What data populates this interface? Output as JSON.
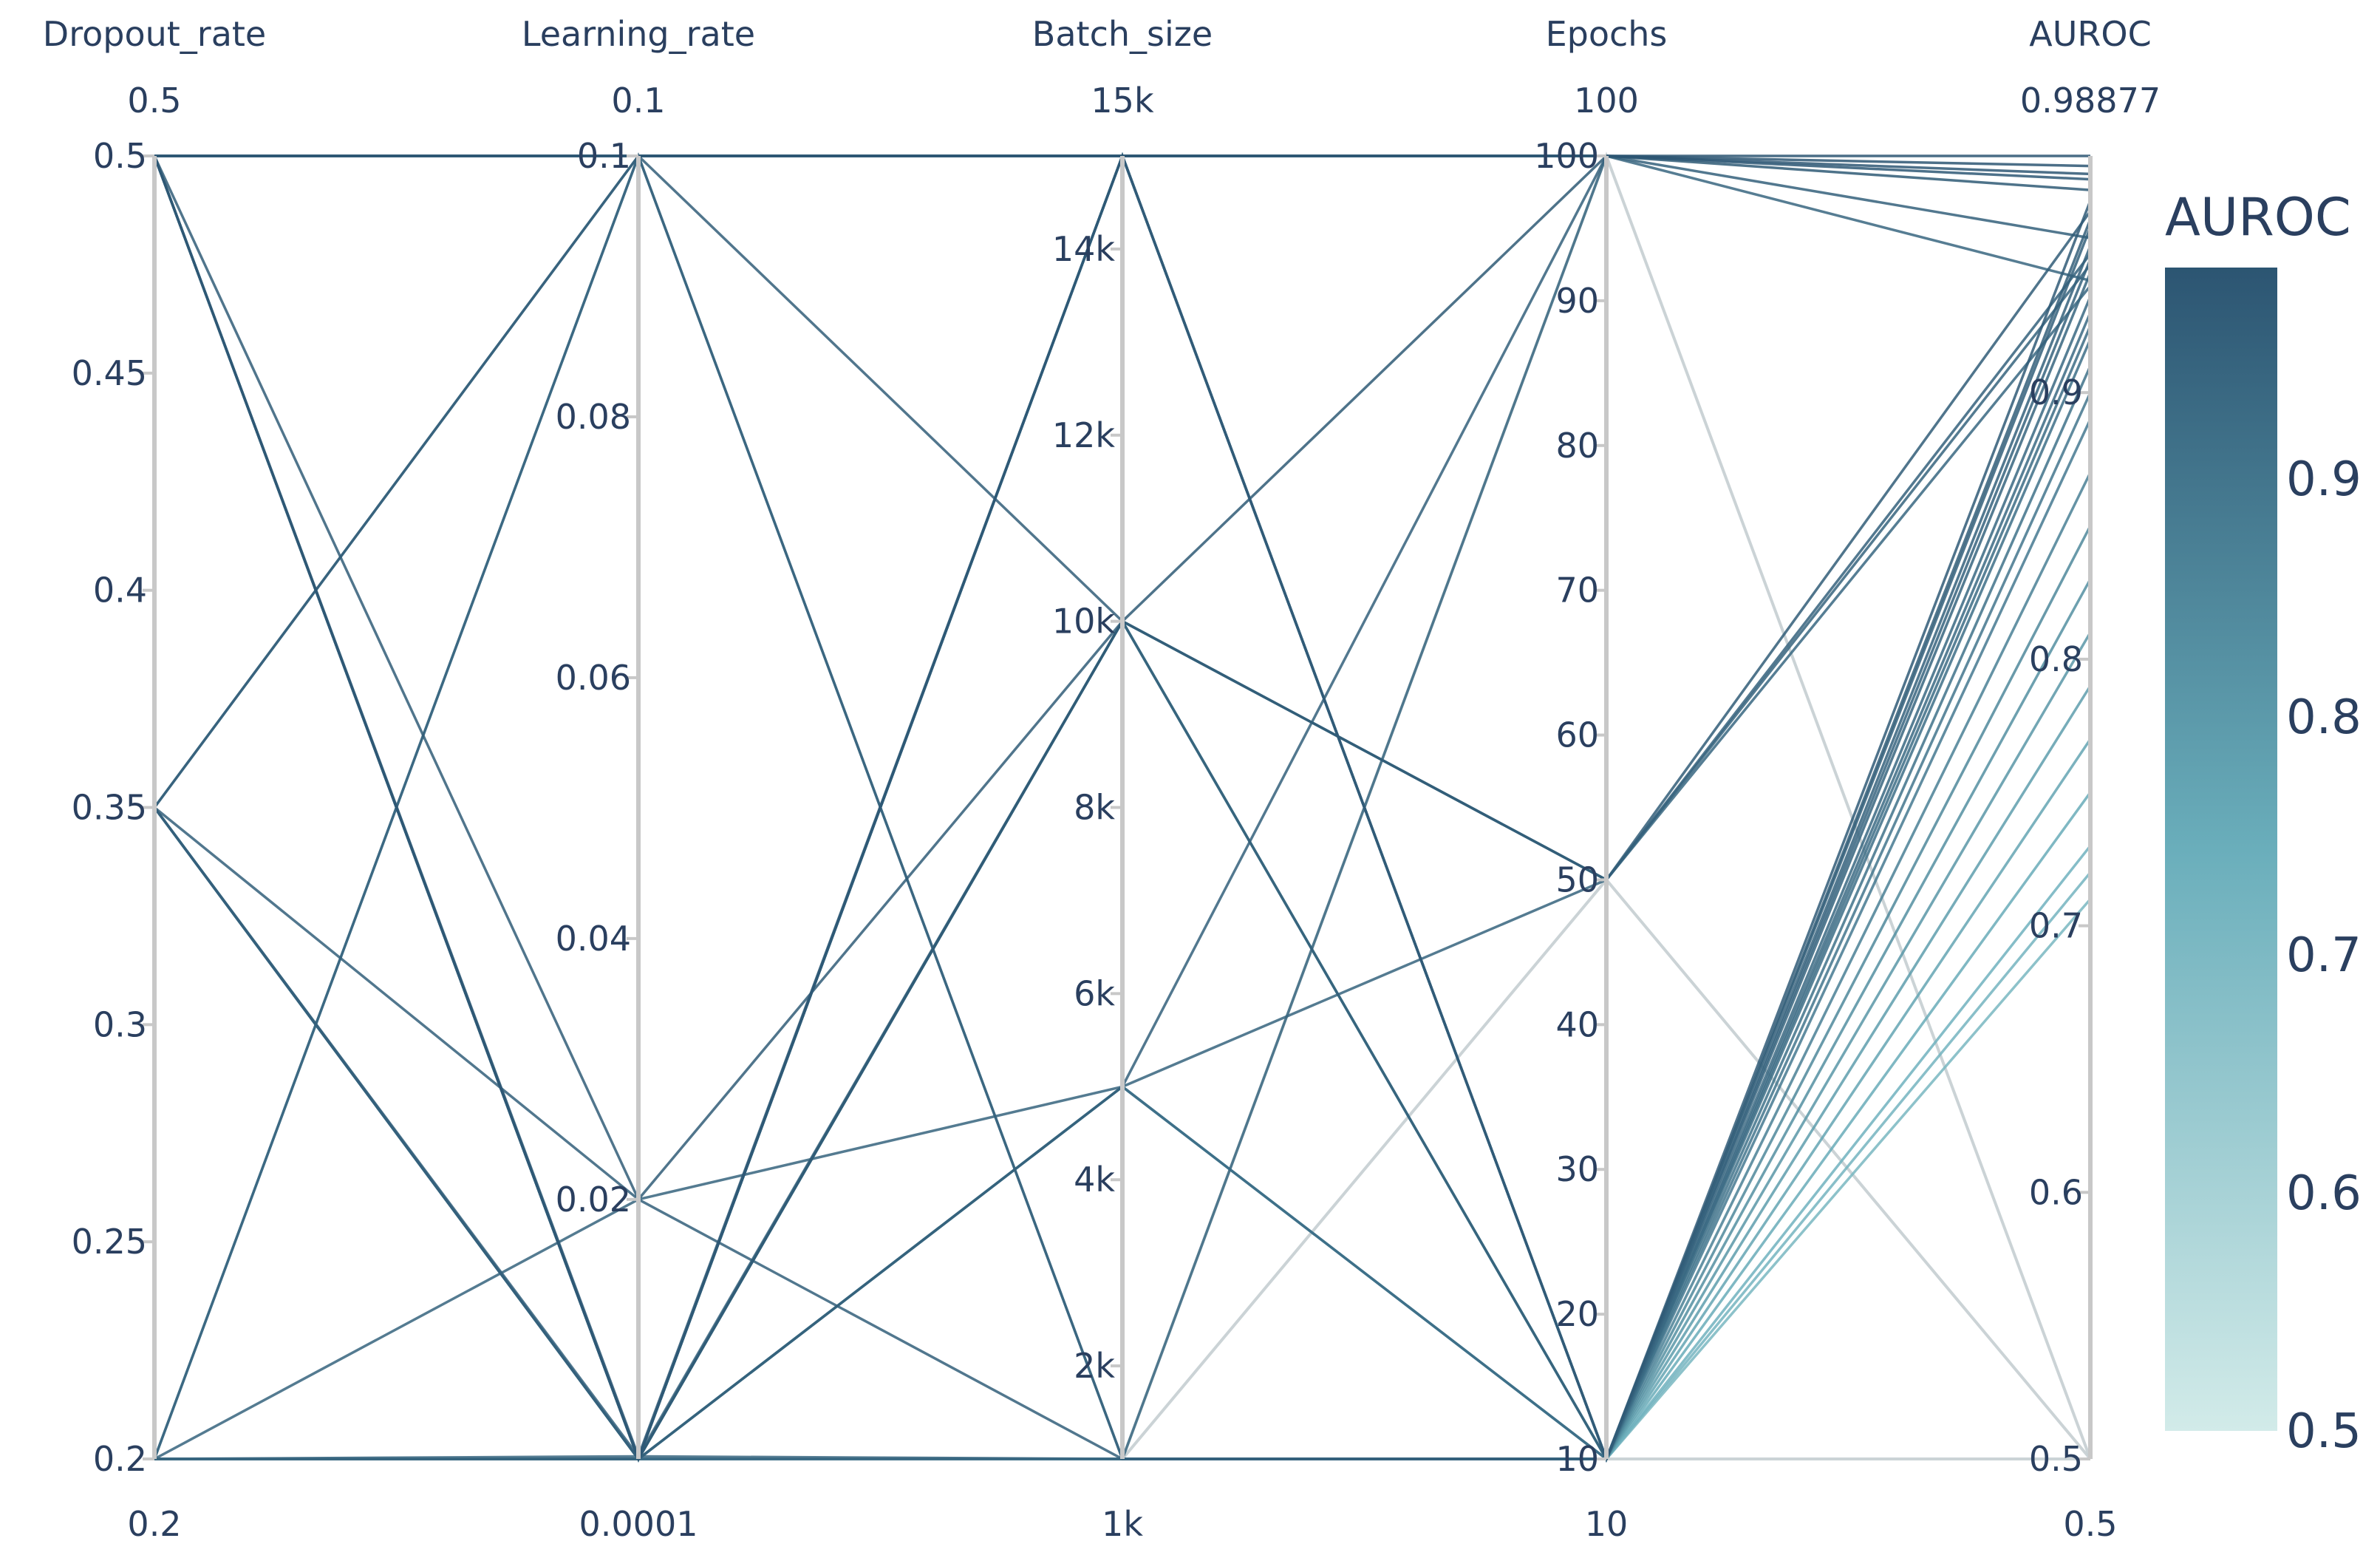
{
  "chart_data": {
    "type": "parallel-coordinates",
    "colorscale_title": "AUROC",
    "colorscale": {
      "low": "#d2ebe9",
      "mid": "#6aaebb",
      "high": "#2c5572"
    },
    "colorbar_range": [
      0.5,
      0.98877
    ],
    "colorbar_ticks": [
      "0.5",
      "0.6",
      "0.7",
      "0.8",
      "0.9"
    ],
    "axes": [
      {
        "name": "Dropout_rate",
        "min": 0.2,
        "max": 0.5,
        "min_label": "0.2",
        "max_label": "0.5",
        "ticks": [
          {
            "v": 0.2,
            "t": "0.2"
          },
          {
            "v": 0.25,
            "t": "0.25"
          },
          {
            "v": 0.3,
            "t": "0.3"
          },
          {
            "v": 0.35,
            "t": "0.35"
          },
          {
            "v": 0.4,
            "t": "0.4"
          },
          {
            "v": 0.45,
            "t": "0.45"
          },
          {
            "v": 0.5,
            "t": "0.5"
          }
        ]
      },
      {
        "name": "Learning_rate",
        "min": 0.0001,
        "max": 0.1,
        "min_label": "0.0001",
        "max_label": "0.1",
        "ticks": [
          {
            "v": 0.02,
            "t": "0.02"
          },
          {
            "v": 0.04,
            "t": "0.04"
          },
          {
            "v": 0.06,
            "t": "0.06"
          },
          {
            "v": 0.08,
            "t": "0.08"
          },
          {
            "v": 0.1,
            "t": "0.1"
          }
        ]
      },
      {
        "name": "Batch_size",
        "min": 1000,
        "max": 15000,
        "min_label": "1k",
        "max_label": "15k",
        "ticks": [
          {
            "v": 2000,
            "t": "2k"
          },
          {
            "v": 4000,
            "t": "4k"
          },
          {
            "v": 6000,
            "t": "6k"
          },
          {
            "v": 8000,
            "t": "8k"
          },
          {
            "v": 10000,
            "t": "10k"
          },
          {
            "v": 12000,
            "t": "12k"
          },
          {
            "v": 14000,
            "t": "14k"
          }
        ]
      },
      {
        "name": "Epochs",
        "min": 10,
        "max": 100,
        "min_label": "10",
        "max_label": "100",
        "ticks": [
          {
            "v": 10,
            "t": "10"
          },
          {
            "v": 20,
            "t": "20"
          },
          {
            "v": 30,
            "t": "30"
          },
          {
            "v": 40,
            "t": "40"
          },
          {
            "v": 50,
            "t": "50"
          },
          {
            "v": 60,
            "t": "60"
          },
          {
            "v": 70,
            "t": "70"
          },
          {
            "v": 80,
            "t": "80"
          },
          {
            "v": 90,
            "t": "90"
          },
          {
            "v": 100,
            "t": "100"
          }
        ]
      },
      {
        "name": "AUROC",
        "min": 0.5,
        "max": 0.98877,
        "min_label": "0.5",
        "max_label": "0.98877",
        "ticks": [
          {
            "v": 0.5,
            "t": "0.5"
          },
          {
            "v": 0.6,
            "t": "0.6"
          },
          {
            "v": 0.7,
            "t": "0.7"
          },
          {
            "v": 0.8,
            "t": "0.8"
          },
          {
            "v": 0.9,
            "t": "0.9"
          }
        ]
      }
    ],
    "lines": [
      [
        0.5,
        0.1,
        15000,
        100,
        0.98877
      ],
      [
        0.5,
        0.1,
        15000,
        100,
        0.985
      ],
      [
        0.5,
        0.1,
        15000,
        100,
        0.982
      ],
      [
        0.5,
        0.0001,
        15000,
        100,
        0.98
      ],
      [
        0.5,
        0.0001,
        10000,
        100,
        0.976
      ],
      [
        0.5,
        0.0003,
        15000,
        10,
        0.972
      ],
      [
        0.5,
        0.02,
        10000,
        50,
        0.968
      ],
      [
        0.35,
        0.1,
        10000,
        10,
        0.965
      ],
      [
        0.35,
        0.02,
        1000,
        10,
        0.962
      ],
      [
        0.35,
        0.0001,
        5000,
        100,
        0.958
      ],
      [
        0.35,
        0.0001,
        15000,
        10,
        0.955
      ],
      [
        0.35,
        0.0003,
        10000,
        50,
        0.952
      ],
      [
        0.2,
        0.1,
        1000,
        10,
        0.95
      ],
      [
        0.2,
        0.02,
        5000,
        50,
        0.948
      ],
      [
        0.2,
        0.0001,
        15000,
        10,
        0.945
      ],
      [
        0.2,
        0.0003,
        1000,
        100,
        0.942
      ],
      [
        0.2,
        0.0001,
        10000,
        50,
        0.94
      ],
      [
        0.2,
        0.0001,
        1000,
        10,
        0.936
      ],
      [
        0.5,
        0.1,
        1000,
        10,
        0.93
      ],
      [
        0.35,
        0.1,
        15000,
        10,
        0.925
      ],
      [
        0.2,
        0.0001,
        5000,
        10,
        0.92
      ],
      [
        0.5,
        0.0001,
        5000,
        10,
        0.91
      ],
      [
        0.2,
        0.1,
        15000,
        10,
        0.9
      ],
      [
        0.35,
        0.0001,
        1000,
        10,
        0.89
      ],
      [
        0.5,
        0.0001,
        1000,
        10,
        0.87
      ],
      [
        0.2,
        0.0001,
        10000,
        10,
        0.85
      ],
      [
        0.35,
        0.0001,
        10000,
        10,
        0.83
      ],
      [
        0.5,
        0.0001,
        10000,
        10,
        0.81
      ],
      [
        0.2,
        0.0001,
        15000,
        10,
        0.79
      ],
      [
        0.35,
        0.0001,
        5000,
        10,
        0.77
      ],
      [
        0.5,
        0.0001,
        15000,
        10,
        0.75
      ],
      [
        0.2,
        0.0001,
        1000,
        10,
        0.73
      ],
      [
        0.35,
        0.0001,
        15000,
        10,
        0.72
      ],
      [
        0.2,
        0.0001,
        1000,
        10,
        0.71
      ],
      [
        0.2,
        0.0001,
        1000,
        100,
        0.5
      ],
      [
        0.2,
        0.0001,
        1000,
        50,
        0.5
      ],
      [
        0.2,
        0.0001,
        1000,
        10,
        0.5
      ]
    ]
  }
}
